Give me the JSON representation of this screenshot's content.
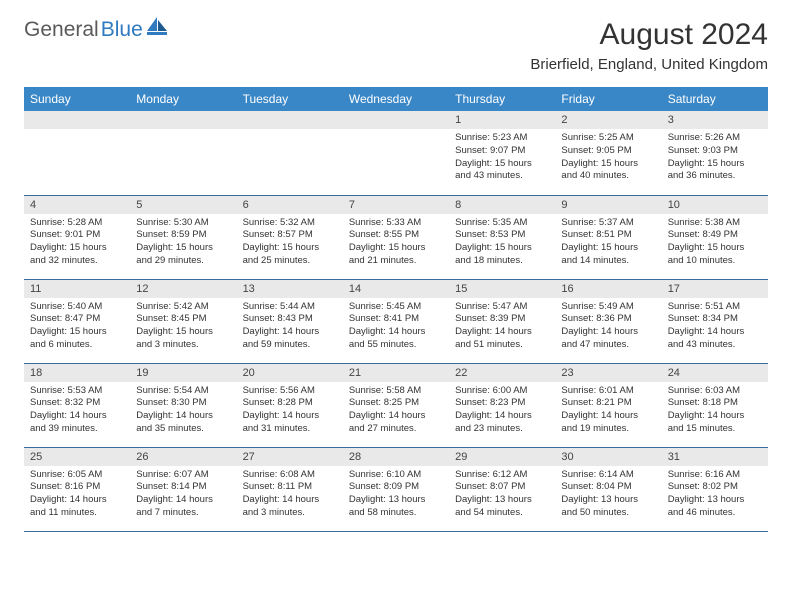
{
  "logo": {
    "part1": "General",
    "part2": "Blue"
  },
  "title": "August 2024",
  "location": "Brierfield, England, United Kingdom",
  "colors": {
    "header_bg": "#3a87c7",
    "header_text": "#ffffff",
    "daynum_bg": "#e9e9e9",
    "border": "#3a6a9a",
    "logo_gray": "#5a5a5a",
    "logo_blue": "#2f7ac0",
    "text": "#333333",
    "page_bg": "#ffffff"
  },
  "dayNames": [
    "Sunday",
    "Monday",
    "Tuesday",
    "Wednesday",
    "Thursday",
    "Friday",
    "Saturday"
  ],
  "weeks": [
    [
      null,
      null,
      null,
      null,
      {
        "n": "1",
        "sr": "5:23 AM",
        "ss": "9:07 PM",
        "dl": "15 hours and 43 minutes."
      },
      {
        "n": "2",
        "sr": "5:25 AM",
        "ss": "9:05 PM",
        "dl": "15 hours and 40 minutes."
      },
      {
        "n": "3",
        "sr": "5:26 AM",
        "ss": "9:03 PM",
        "dl": "15 hours and 36 minutes."
      }
    ],
    [
      {
        "n": "4",
        "sr": "5:28 AM",
        "ss": "9:01 PM",
        "dl": "15 hours and 32 minutes."
      },
      {
        "n": "5",
        "sr": "5:30 AM",
        "ss": "8:59 PM",
        "dl": "15 hours and 29 minutes."
      },
      {
        "n": "6",
        "sr": "5:32 AM",
        "ss": "8:57 PM",
        "dl": "15 hours and 25 minutes."
      },
      {
        "n": "7",
        "sr": "5:33 AM",
        "ss": "8:55 PM",
        "dl": "15 hours and 21 minutes."
      },
      {
        "n": "8",
        "sr": "5:35 AM",
        "ss": "8:53 PM",
        "dl": "15 hours and 18 minutes."
      },
      {
        "n": "9",
        "sr": "5:37 AM",
        "ss": "8:51 PM",
        "dl": "15 hours and 14 minutes."
      },
      {
        "n": "10",
        "sr": "5:38 AM",
        "ss": "8:49 PM",
        "dl": "15 hours and 10 minutes."
      }
    ],
    [
      {
        "n": "11",
        "sr": "5:40 AM",
        "ss": "8:47 PM",
        "dl": "15 hours and 6 minutes."
      },
      {
        "n": "12",
        "sr": "5:42 AM",
        "ss": "8:45 PM",
        "dl": "15 hours and 3 minutes."
      },
      {
        "n": "13",
        "sr": "5:44 AM",
        "ss": "8:43 PM",
        "dl": "14 hours and 59 minutes."
      },
      {
        "n": "14",
        "sr": "5:45 AM",
        "ss": "8:41 PM",
        "dl": "14 hours and 55 minutes."
      },
      {
        "n": "15",
        "sr": "5:47 AM",
        "ss": "8:39 PM",
        "dl": "14 hours and 51 minutes."
      },
      {
        "n": "16",
        "sr": "5:49 AM",
        "ss": "8:36 PM",
        "dl": "14 hours and 47 minutes."
      },
      {
        "n": "17",
        "sr": "5:51 AM",
        "ss": "8:34 PM",
        "dl": "14 hours and 43 minutes."
      }
    ],
    [
      {
        "n": "18",
        "sr": "5:53 AM",
        "ss": "8:32 PM",
        "dl": "14 hours and 39 minutes."
      },
      {
        "n": "19",
        "sr": "5:54 AM",
        "ss": "8:30 PM",
        "dl": "14 hours and 35 minutes."
      },
      {
        "n": "20",
        "sr": "5:56 AM",
        "ss": "8:28 PM",
        "dl": "14 hours and 31 minutes."
      },
      {
        "n": "21",
        "sr": "5:58 AM",
        "ss": "8:25 PM",
        "dl": "14 hours and 27 minutes."
      },
      {
        "n": "22",
        "sr": "6:00 AM",
        "ss": "8:23 PM",
        "dl": "14 hours and 23 minutes."
      },
      {
        "n": "23",
        "sr": "6:01 AM",
        "ss": "8:21 PM",
        "dl": "14 hours and 19 minutes."
      },
      {
        "n": "24",
        "sr": "6:03 AM",
        "ss": "8:18 PM",
        "dl": "14 hours and 15 minutes."
      }
    ],
    [
      {
        "n": "25",
        "sr": "6:05 AM",
        "ss": "8:16 PM",
        "dl": "14 hours and 11 minutes."
      },
      {
        "n": "26",
        "sr": "6:07 AM",
        "ss": "8:14 PM",
        "dl": "14 hours and 7 minutes."
      },
      {
        "n": "27",
        "sr": "6:08 AM",
        "ss": "8:11 PM",
        "dl": "14 hours and 3 minutes."
      },
      {
        "n": "28",
        "sr": "6:10 AM",
        "ss": "8:09 PM",
        "dl": "13 hours and 58 minutes."
      },
      {
        "n": "29",
        "sr": "6:12 AM",
        "ss": "8:07 PM",
        "dl": "13 hours and 54 minutes."
      },
      {
        "n": "30",
        "sr": "6:14 AM",
        "ss": "8:04 PM",
        "dl": "13 hours and 50 minutes."
      },
      {
        "n": "31",
        "sr": "6:16 AM",
        "ss": "8:02 PM",
        "dl": "13 hours and 46 minutes."
      }
    ]
  ],
  "labels": {
    "sunrise": "Sunrise:",
    "sunset": "Sunset:",
    "daylight": "Daylight:"
  }
}
